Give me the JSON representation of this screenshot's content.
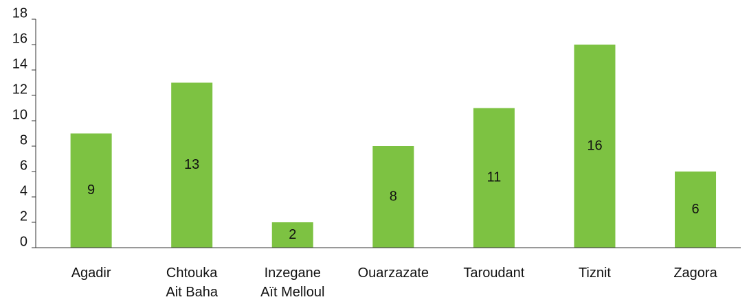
{
  "chart_data": {
    "type": "bar",
    "categories": [
      "Agadir",
      "Chtouka\nAit Baha",
      "Inzegane\nAït Melloul",
      "Ouarzazate",
      "Taroudant",
      "Tiznit",
      "Zagora"
    ],
    "values": [
      9,
      13,
      2,
      8,
      11,
      16,
      6
    ],
    "color": "#7dc242",
    "ylim": [
      0,
      18
    ],
    "yticks": [
      0,
      2,
      4,
      6,
      8,
      10,
      12,
      14,
      16,
      18
    ],
    "grid": false
  }
}
